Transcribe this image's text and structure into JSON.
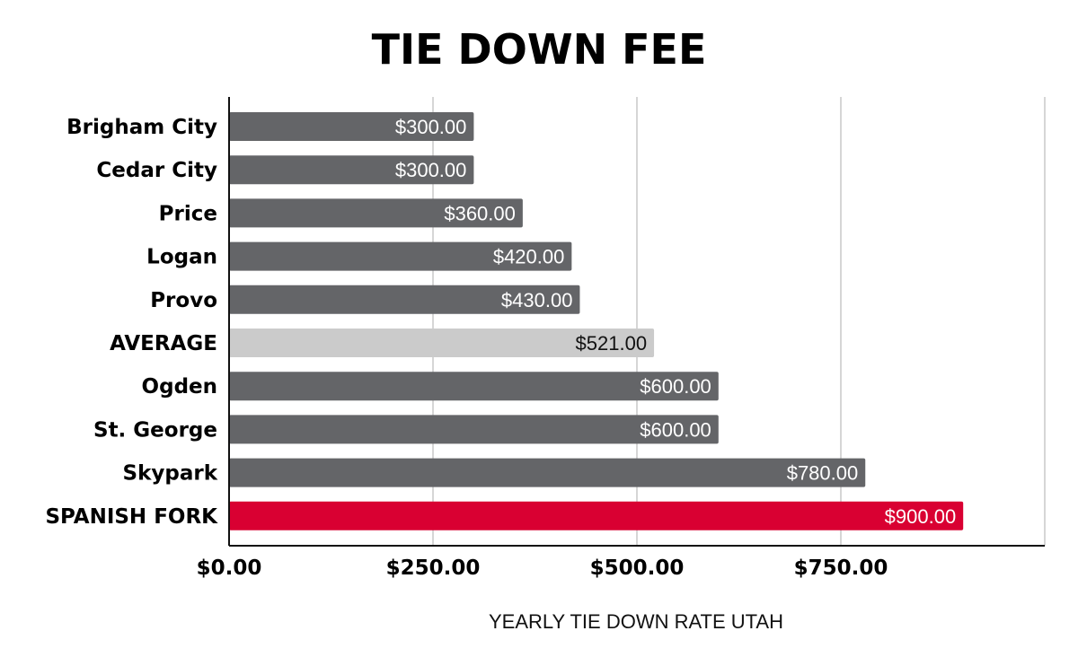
{
  "chart_data": {
    "type": "bar",
    "orientation": "horizontal",
    "title": "TIE DOWN FEE",
    "xlabel": "YEARLY TIE DOWN RATE UTAH",
    "ylabel": "",
    "xlim": [
      0,
      1000
    ],
    "xticks": [
      0,
      250,
      500,
      750
    ],
    "xtick_labels": [
      "$0.00",
      "$250.00",
      "$500.00",
      "$750.00"
    ],
    "grid": true,
    "categories": [
      "Brigham City",
      "Cedar City",
      "Price",
      "Logan",
      "Provo",
      "AVERAGE",
      "Ogden",
      "St. George",
      "Skypark",
      "SPANISH FORK"
    ],
    "values": [
      300,
      300,
      360,
      420,
      430,
      521,
      600,
      600,
      780,
      900
    ],
    "value_labels": [
      "$300.00",
      "$300.00",
      "$360.00",
      "$420.00",
      "$430.00",
      "$521.00",
      "$600.00",
      "$600.00",
      "$780.00",
      "$900.00"
    ],
    "colors": {
      "default": "#646568",
      "average": "#cbcbcb",
      "highlight": "#d90032",
      "label_on_dark": "#ffffff",
      "label_on_light": "#111111",
      "grid": "#c8c8c8"
    }
  }
}
